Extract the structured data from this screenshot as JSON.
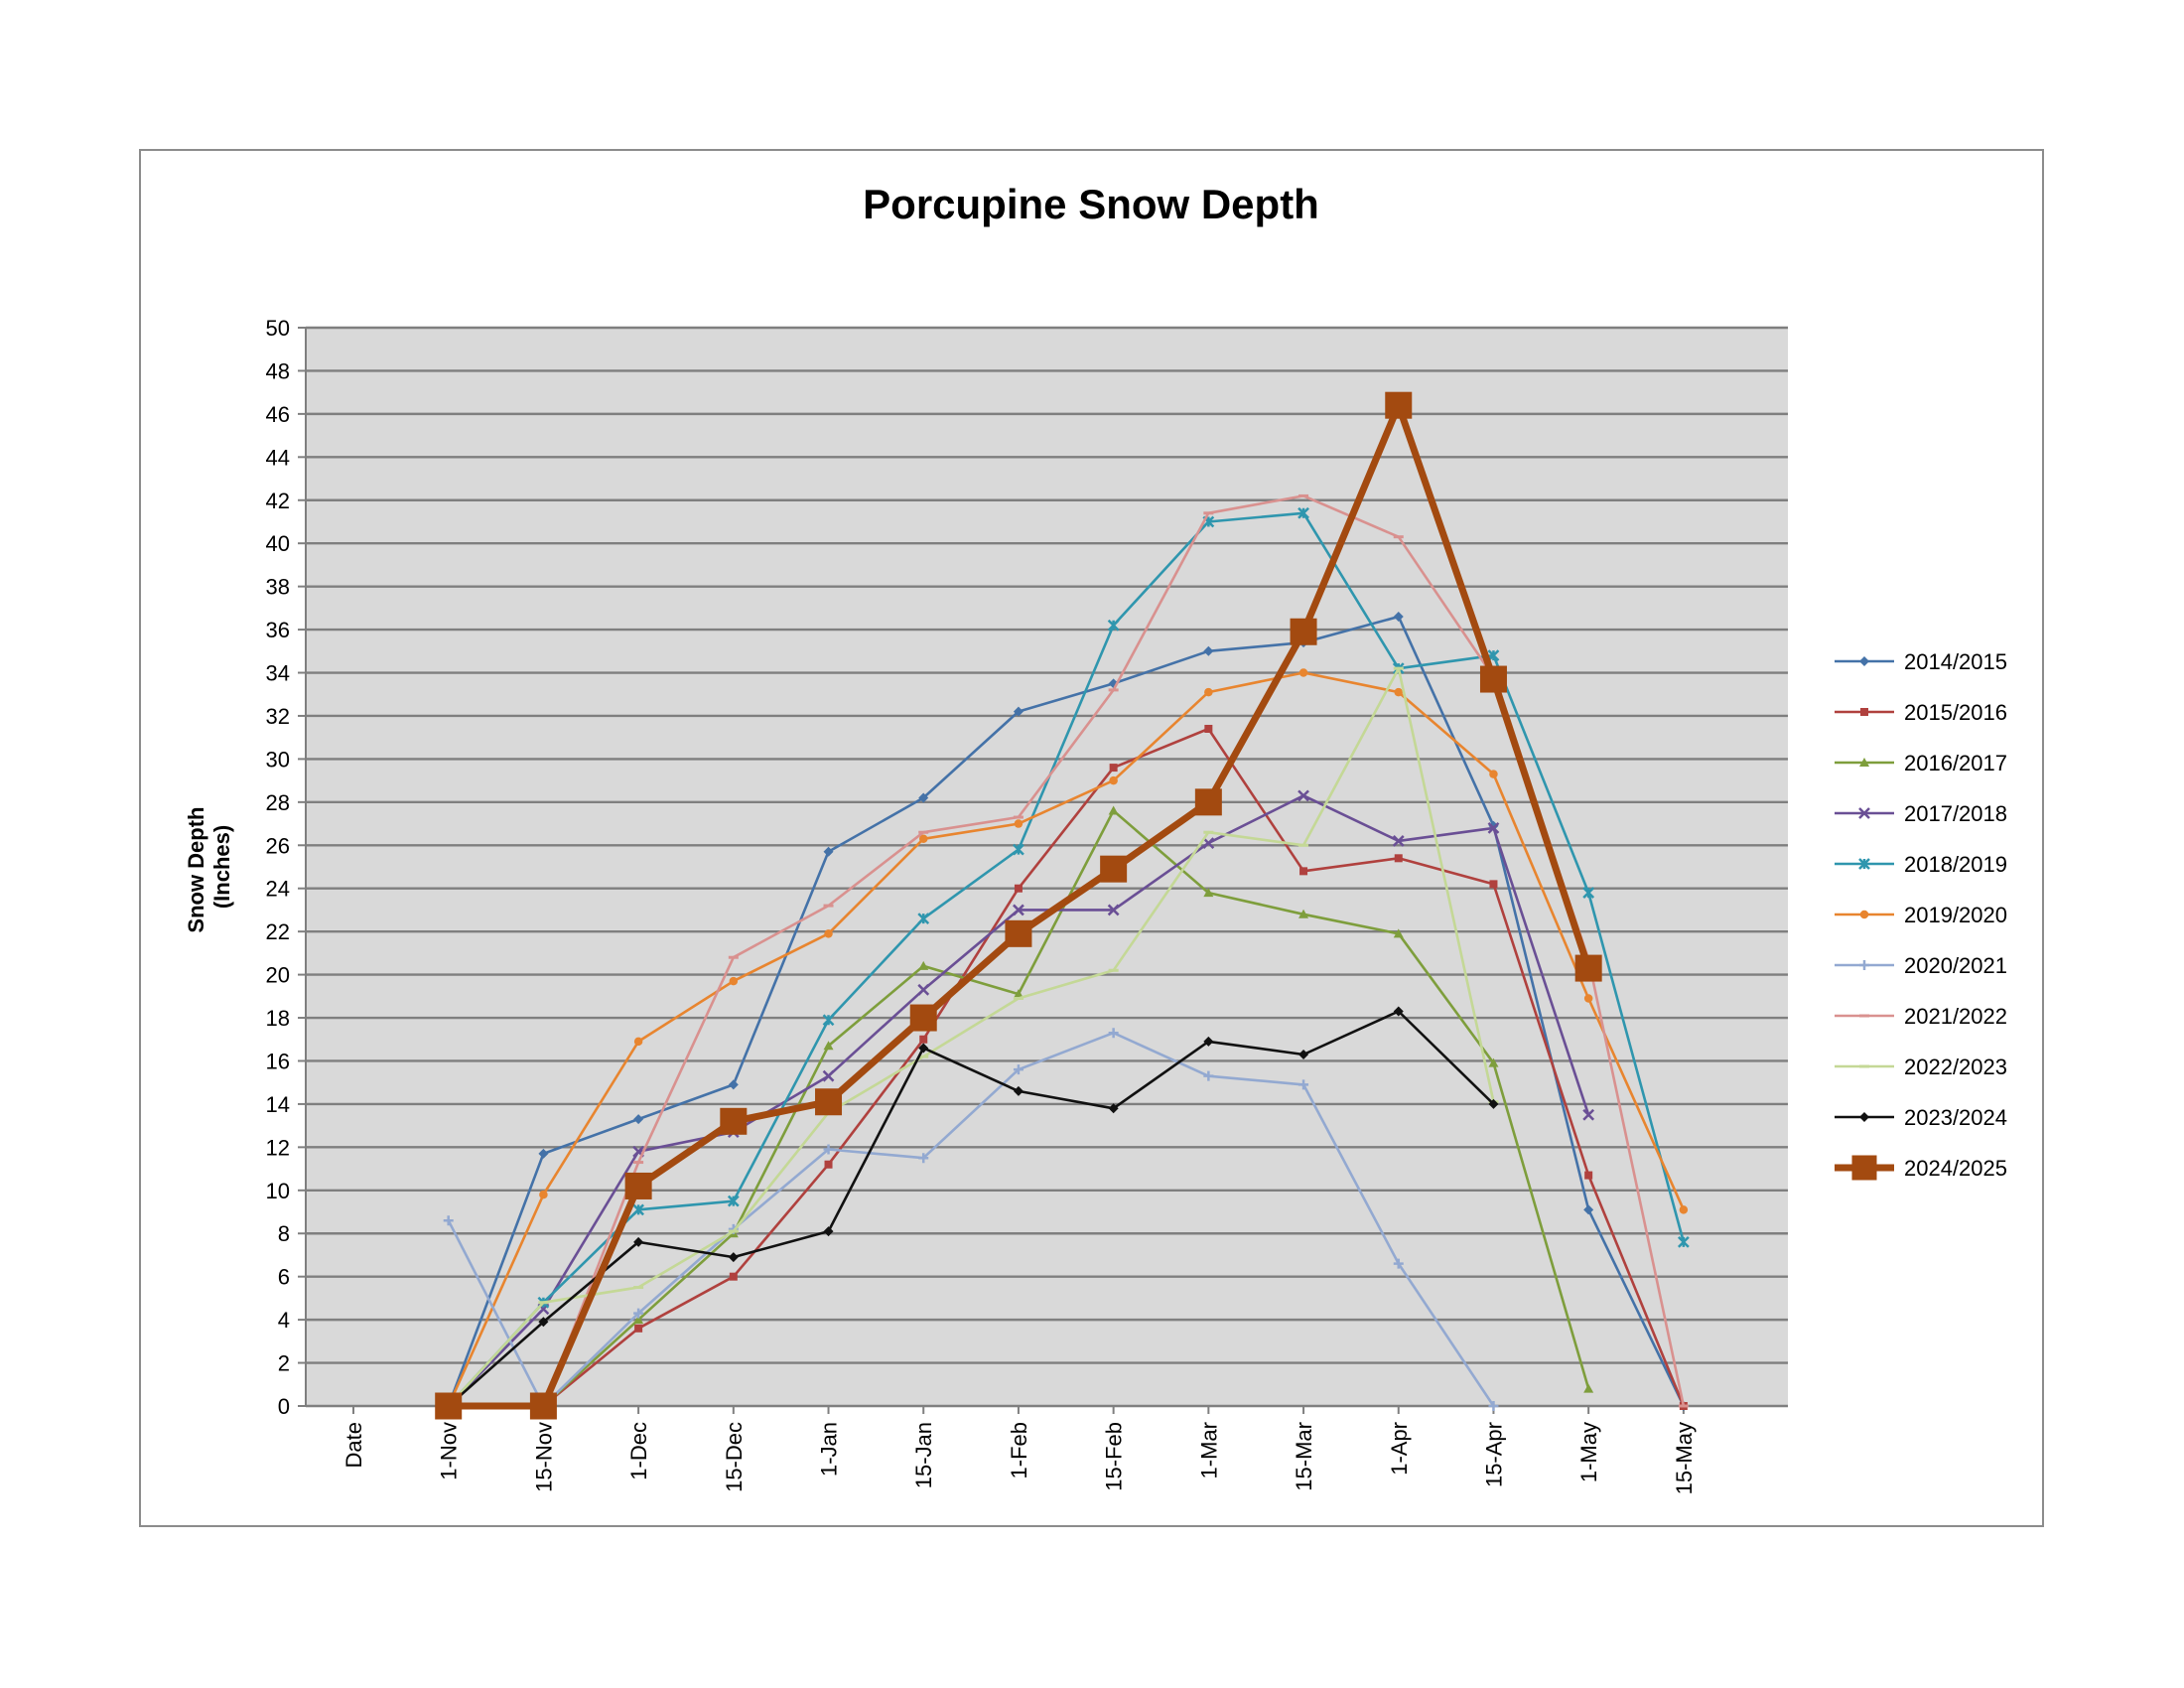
{
  "chart_data": {
    "type": "line",
    "title": "Porcupine Snow Depth",
    "xlabel": "",
    "ylabel_lines": [
      "Snow Depth",
      "(Inches)"
    ],
    "categories": [
      "Date",
      "1-Nov",
      "15-Nov",
      "1-Dec",
      "15-Dec",
      "1-Jan",
      "15-Jan",
      "1-Feb",
      "15-Feb",
      "1-Mar",
      "15-Mar",
      "1-Apr",
      "15-Apr",
      "1-May",
      "15-May"
    ],
    "ylim": [
      0,
      50
    ],
    "y_step": 2,
    "grid": true,
    "legend_position": "right",
    "series": [
      {
        "name": "2014/2015",
        "color": "#4472A8",
        "marker": "diamond",
        "values": [
          null,
          0,
          11.7,
          13.3,
          14.9,
          25.7,
          28.2,
          32.2,
          33.5,
          35,
          35.4,
          36.6,
          26.9,
          9.1,
          0
        ]
      },
      {
        "name": "2015/2016",
        "color": "#B0413E",
        "marker": "square",
        "values": [
          null,
          0,
          0,
          3.6,
          6,
          11.2,
          17,
          24,
          29.6,
          31.4,
          24.8,
          25.4,
          24.2,
          10.7,
          0
        ]
      },
      {
        "name": "2016/2017",
        "color": "#7E9E3C",
        "marker": "triangle",
        "values": [
          null,
          0,
          0,
          4,
          8,
          16.7,
          20.4,
          19.1,
          27.6,
          23.8,
          22.8,
          21.9,
          15.9,
          0.8,
          null
        ]
      },
      {
        "name": "2017/2018",
        "color": "#6A4F95",
        "marker": "x",
        "values": [
          null,
          0,
          4.5,
          11.8,
          12.7,
          15.3,
          19.3,
          23,
          23,
          26.1,
          28.3,
          26.2,
          26.8,
          13.5,
          null
        ]
      },
      {
        "name": "2018/2019",
        "color": "#2F96AE",
        "marker": "star",
        "values": [
          null,
          0,
          4.8,
          9.1,
          9.5,
          17.9,
          22.6,
          25.8,
          36.2,
          41,
          41.4,
          34.2,
          34.8,
          23.8,
          7.6
        ]
      },
      {
        "name": "2019/2020",
        "color": "#E8852F",
        "marker": "circle",
        "values": [
          null,
          0,
          9.8,
          16.9,
          19.7,
          21.9,
          26.3,
          27,
          29,
          33.1,
          34,
          33.1,
          29.3,
          18.9,
          9.1
        ]
      },
      {
        "name": "2020/2021",
        "color": "#93A9D1",
        "marker": "plus",
        "values": [
          null,
          8.6,
          0,
          4.3,
          8.2,
          11.9,
          11.5,
          15.6,
          17.3,
          15.3,
          14.9,
          6.6,
          0,
          null,
          null
        ]
      },
      {
        "name": "2021/2022",
        "color": "#D9918F",
        "marker": "dash",
        "values": [
          null,
          0,
          0,
          11.3,
          20.8,
          23.2,
          26.6,
          27.3,
          33.2,
          41.4,
          42.2,
          40.3,
          33.8,
          20.7,
          0
        ]
      },
      {
        "name": "2022/2023",
        "color": "#C4D896",
        "marker": "dash",
        "values": [
          null,
          0,
          4.8,
          5.5,
          8.1,
          13.6,
          16.2,
          18.9,
          20.2,
          26.6,
          26,
          34.2,
          14.1,
          null,
          null
        ]
      },
      {
        "name": "2023/2024",
        "color": "#111111",
        "marker": "diamond",
        "values": [
          null,
          0,
          3.9,
          7.6,
          6.9,
          8.1,
          16.6,
          14.6,
          13.8,
          16.9,
          16.3,
          18.3,
          14,
          null,
          null
        ]
      },
      {
        "name": "2024/2025",
        "color": "#A34A10",
        "marker": "big-square",
        "values": [
          null,
          0,
          0,
          10.2,
          13.2,
          14.1,
          18,
          21.9,
          24.9,
          28,
          35.9,
          46.4,
          33.7,
          20.3,
          null
        ]
      }
    ]
  }
}
